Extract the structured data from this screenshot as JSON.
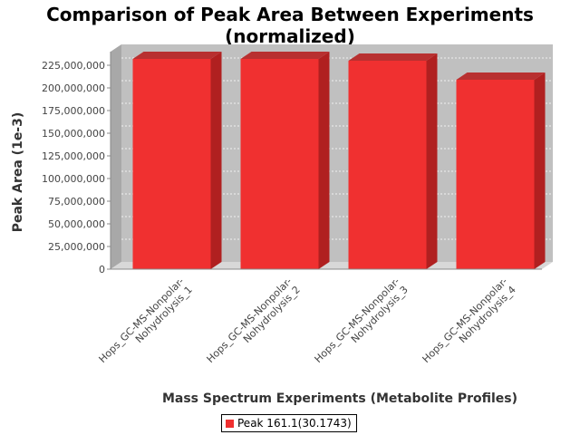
{
  "chart_data": {
    "type": "bar",
    "title_line1": "Comparison of Peak Area Between Experiments",
    "title_line2": "(normalized)",
    "xlabel": "Mass Spectrum Experiments (Metabolite Profiles)",
    "ylabel": "Peak Area (1e-3)",
    "categories": [
      [
        "Hops_GC-MS-Nonpolar-",
        "Nohydrolysis_1"
      ],
      [
        "Hops_GC-MS-Nonpolar-",
        "Nohydrolysis_2"
      ],
      [
        "Hops_GC-MS-Nonpolar-",
        "Nohydrolysis_3"
      ],
      [
        "Hops_GC-MS-Nonpolar-",
        "Nohydrolysis_4"
      ]
    ],
    "series": [
      {
        "name": "Peak 161.1(30.1743)",
        "values": [
          232000000,
          232000000,
          230000000,
          209000000
        ]
      }
    ],
    "yticks": [
      "0",
      "25,000,000",
      "50,000,000",
      "75,000,000",
      "100,000,000",
      "125,000,000",
      "150,000,000",
      "175,000,000",
      "200,000,000",
      "225,000,000"
    ],
    "ytick_values": [
      0,
      25000000,
      50000000,
      75000000,
      100000000,
      125000000,
      150000000,
      175000000,
      200000000,
      225000000
    ],
    "ylim": [
      0,
      240000000
    ],
    "grid": true,
    "legend_position": "bottom",
    "colors": {
      "bar_front": "#f03030",
      "bar_side": "#b02020",
      "bar_top": "#b83030",
      "plot_back": "#c0c0c0",
      "plot_floor": "#d8d8d8",
      "grid": "#ffffff"
    }
  }
}
